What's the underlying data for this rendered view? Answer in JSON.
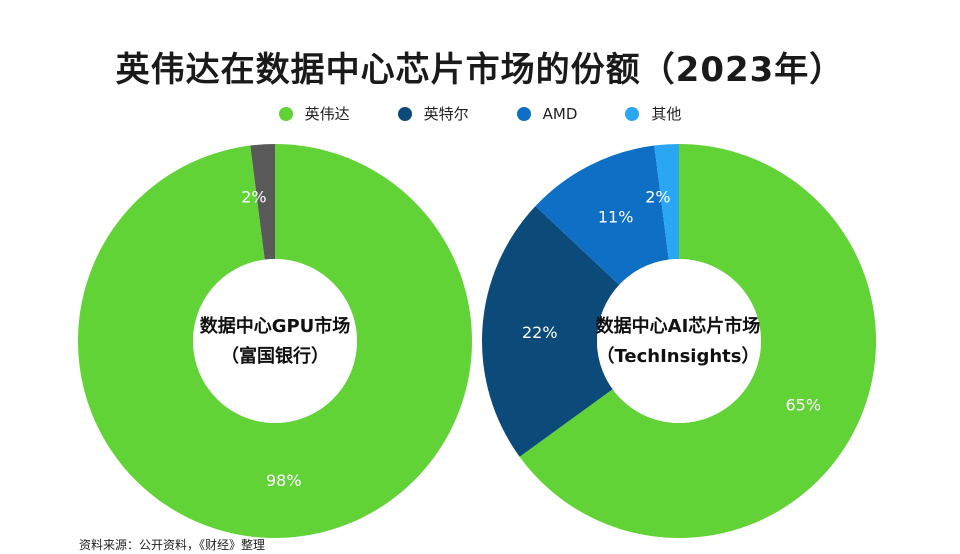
{
  "title": "英伟达在数据中心芯片市场的份额（2023年）",
  "legend": [
    {
      "label": "英伟达",
      "color": "#62d337"
    },
    {
      "label": "英特尔",
      "color": "#0c4a7a"
    },
    {
      "label": "AMD",
      "color": "#0e6fc4"
    },
    {
      "label": "其他",
      "color": "#2aa7f3"
    }
  ],
  "source": "资料来源：公开资料，《财经》整理",
  "chart_data": [
    {
      "type": "pie",
      "title": "数据中心GPU市场",
      "subtitle": "（富国银行）",
      "categories": [
        "英伟达",
        "其他"
      ],
      "values": [
        98,
        2
      ],
      "labels": [
        "98%",
        "2%"
      ],
      "colors": [
        "#62d337",
        "#595959"
      ],
      "donut": true
    },
    {
      "type": "pie",
      "title": "数据中心AI芯片市场",
      "subtitle": "（TechInsights）",
      "categories": [
        "英伟达",
        "英特尔",
        "AMD",
        "其他"
      ],
      "values": [
        65,
        22,
        11,
        2
      ],
      "labels": [
        "65%",
        "22%",
        "11%",
        "2%"
      ],
      "colors": [
        "#62d337",
        "#0c4a7a",
        "#0e6fc4",
        "#2aa7f3"
      ],
      "donut": true
    }
  ]
}
